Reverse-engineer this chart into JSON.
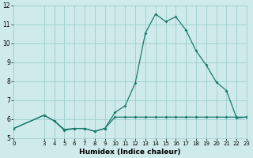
{
  "xlabel": "Humidex (Indice chaleur)",
  "x_main": [
    0,
    3,
    4,
    5,
    6,
    7,
    8,
    9,
    10,
    11,
    12,
    13,
    14,
    15,
    16,
    17,
    18,
    19,
    20,
    21,
    22,
    23
  ],
  "y_main": [
    5.5,
    6.2,
    5.9,
    5.4,
    5.5,
    5.5,
    5.35,
    5.5,
    6.35,
    6.7,
    7.9,
    10.55,
    11.55,
    11.15,
    11.4,
    10.7,
    9.6,
    8.85,
    7.95,
    7.5,
    6.05,
    6.1
  ],
  "x_flat": [
    0,
    3,
    4,
    5,
    6,
    7,
    8,
    9,
    10,
    11,
    12,
    13,
    14,
    15,
    16,
    17,
    18,
    19,
    20,
    21,
    22,
    23
  ],
  "y_flat": [
    5.5,
    6.2,
    5.9,
    5.45,
    5.5,
    5.5,
    5.35,
    5.5,
    6.1,
    6.1,
    6.1,
    6.1,
    6.1,
    6.1,
    6.1,
    6.1,
    6.1,
    6.1,
    6.1,
    6.1,
    6.1,
    6.1
  ],
  "line_color": "#1a7a6e",
  "bg_color": "#ceeaea",
  "grid_color": "#9ecece",
  "xlim": [
    0,
    23
  ],
  "ylim": [
    5,
    12
  ],
  "yticks": [
    5,
    6,
    7,
    8,
    9,
    10,
    11,
    12
  ],
  "xtick_positions": [
    0,
    3,
    4,
    5,
    6,
    7,
    8,
    9,
    10,
    11,
    12,
    13,
    14,
    15,
    16,
    17,
    18,
    19,
    20,
    21,
    22,
    23
  ],
  "xtick_labels": [
    "0",
    "3",
    "4",
    "5",
    "6",
    "7",
    "8",
    "9",
    "10",
    "11",
    "12",
    "13",
    "14",
    "15",
    "16",
    "17",
    "18",
    "19",
    "20",
    "21",
    "22",
    "23"
  ]
}
